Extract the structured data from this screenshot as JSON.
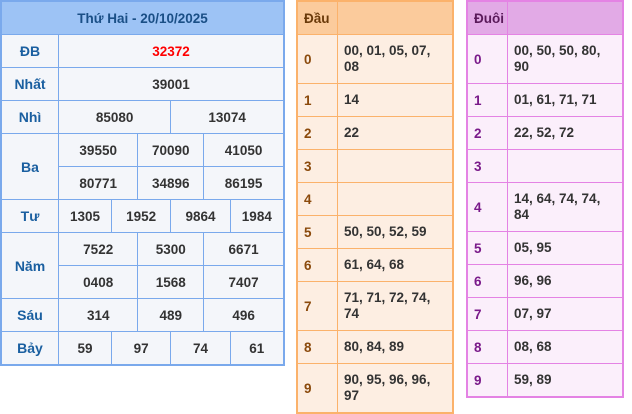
{
  "results": {
    "title": "Thứ Hai - 20/10/2025",
    "labels": {
      "db": "ĐB",
      "nhat": "Nhất",
      "nhi": "Nhì",
      "ba": "Ba",
      "tu": "Tư",
      "nam": "Năm",
      "sau": "Sáu",
      "bay": "Bảy"
    },
    "db": "32372",
    "nhat": "39001",
    "nhi": [
      "85080",
      "13074"
    ],
    "ba": [
      "39550",
      "70090",
      "41050",
      "80771",
      "34896",
      "86195"
    ],
    "tu": [
      "1305",
      "1952",
      "9864",
      "1984"
    ],
    "nam": [
      "7522",
      "5300",
      "6671",
      "0408",
      "1568",
      "7407"
    ],
    "sau": [
      "314",
      "489",
      "496"
    ],
    "bay": [
      "59",
      "97",
      "74",
      "61"
    ]
  },
  "dau": {
    "header": "Đầu",
    "rows": [
      {
        "d": "0",
        "v": "00, 01, 05, 07, 08"
      },
      {
        "d": "1",
        "v": "14"
      },
      {
        "d": "2",
        "v": "22"
      },
      {
        "d": "3",
        "v": ""
      },
      {
        "d": "4",
        "v": ""
      },
      {
        "d": "5",
        "v": "50, 50, 52, 59"
      },
      {
        "d": "6",
        "v": "61, 64, 68"
      },
      {
        "d": "7",
        "v": "71, 71, 72, 74, 74"
      },
      {
        "d": "8",
        "v": "80, 84, 89"
      },
      {
        "d": "9",
        "v": "90, 95, 96, 96, 97"
      }
    ]
  },
  "duoi": {
    "header": "Đuôi",
    "rows": [
      {
        "d": "0",
        "v": "00, 50, 50, 80, 90"
      },
      {
        "d": "1",
        "v": "01, 61, 71, 71"
      },
      {
        "d": "2",
        "v": "22, 52, 72"
      },
      {
        "d": "3",
        "v": ""
      },
      {
        "d": "4",
        "v": "14, 64, 74, 74, 84"
      },
      {
        "d": "5",
        "v": "05, 95"
      },
      {
        "d": "6",
        "v": "96, 96"
      },
      {
        "d": "7",
        "v": "07, 97"
      },
      {
        "d": "8",
        "v": "08, 68"
      },
      {
        "d": "9",
        "v": "59, 89"
      }
    ]
  },
  "colors": {
    "db": "#ff0000",
    "blue_border": "#7aa9ec",
    "orange_border": "#fbb26b",
    "pink_border": "#e483e4"
  }
}
